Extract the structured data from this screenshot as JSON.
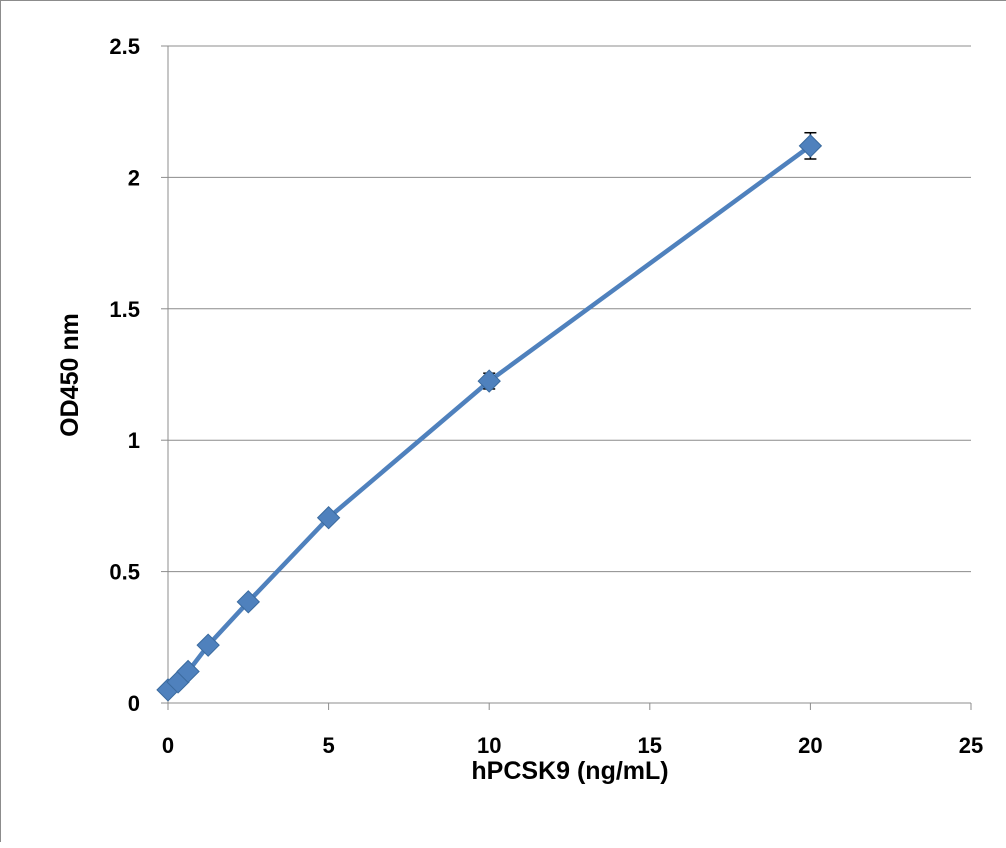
{
  "chart_data": {
    "type": "scatter",
    "title": "",
    "xlabel": "hPCSK9 (ng/mL)",
    "ylabel": "OD450 nm",
    "xlim": [
      0,
      25
    ],
    "ylim": [
      0,
      2.5
    ],
    "xticks": [
      0,
      5,
      10,
      15,
      20,
      25
    ],
    "yticks": [
      0,
      0.5,
      1,
      1.5,
      2,
      2.5
    ],
    "ytick_labels": [
      "0",
      "0.5",
      "1",
      "1.5",
      "2",
      "2.5"
    ],
    "grid": "horizontal",
    "legend": "none",
    "series": [
      {
        "color": "#4f81bd",
        "marker": "diamond",
        "x": [
          0,
          0.3125,
          0.625,
          1.25,
          2.5,
          5,
          10,
          20
        ],
        "y": [
          0.05,
          0.08,
          0.12,
          0.22,
          0.385,
          0.705,
          1.225,
          2.12
        ],
        "error": [
          0.005,
          0.005,
          0.006,
          0.007,
          0.008,
          0.01,
          0.03,
          0.05
        ]
      }
    ]
  }
}
